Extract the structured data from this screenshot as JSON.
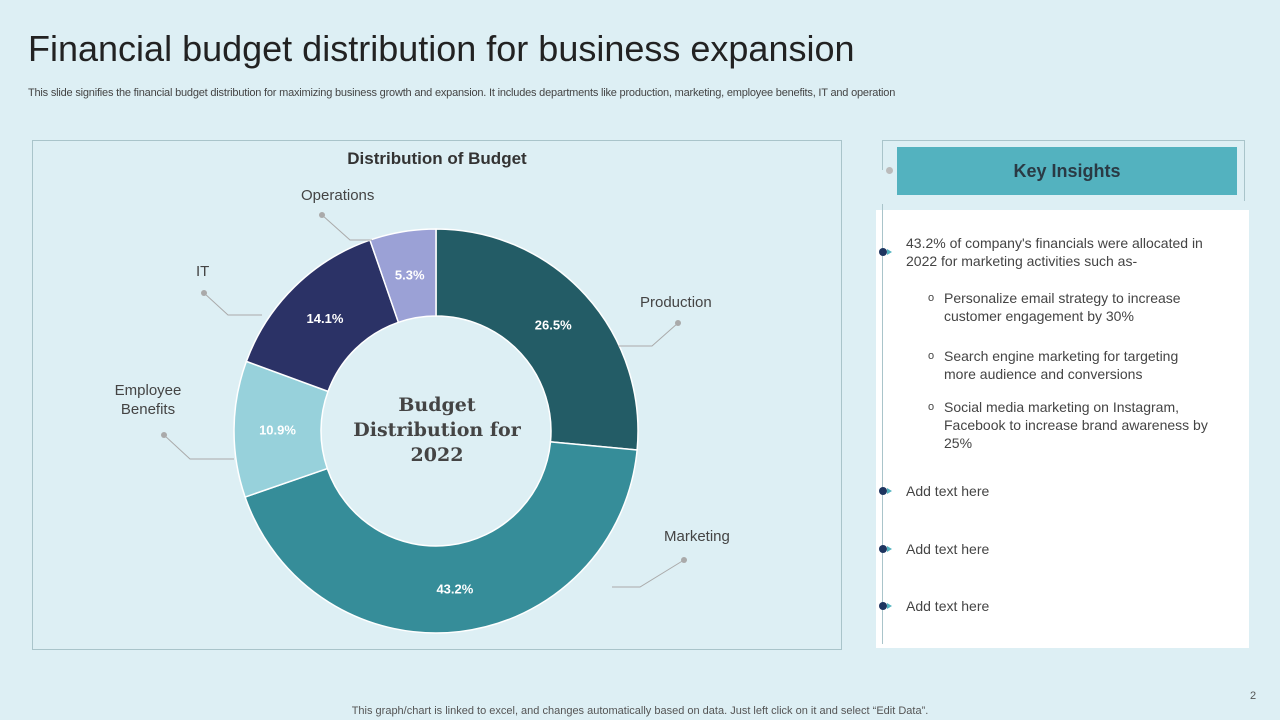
{
  "header": {
    "title": "Financial budget distribution for business expansion",
    "subtitle": "This slide signifies the financial budget distribution for maximizing business growth and expansion. It includes departments like production, marketing, employee benefits, IT and operation"
  },
  "chart_data": {
    "type": "pie",
    "title": "Distribution of Budget",
    "center_label": [
      "Budget",
      "Distribution for",
      "2022"
    ],
    "categories": [
      "Production",
      "Marketing",
      "Employee Benefits",
      "IT",
      "Operations"
    ],
    "values": [
      26.5,
      43.2,
      10.9,
      14.1,
      5.3
    ],
    "data_labels": [
      "26.5%",
      "43.2%",
      "10.9%",
      "14.1%",
      "5.3%"
    ],
    "colors": [
      "#235C66",
      "#368D99",
      "#97D1DB",
      "#2B3266",
      "#9BA1D6"
    ],
    "donut": true
  },
  "insights": {
    "title": "Key Insights",
    "main": "43.2% of company's financials were allocated in 2022 for marketing activities such as-",
    "subs": [
      "Personalize email strategy to increase customer engagement by 30%",
      "Search engine marketing for targeting more audience and conversions",
      "Social media marketing on Instagram, Facebook to increase brand awareness by 25%"
    ],
    "items": [
      "Add text here",
      "Add text here",
      "Add text here"
    ]
  },
  "footer": "This graph/chart is linked to excel,  and changes automatically based on data. Just left click on it and select “Edit Data”.",
  "page_number": "2"
}
